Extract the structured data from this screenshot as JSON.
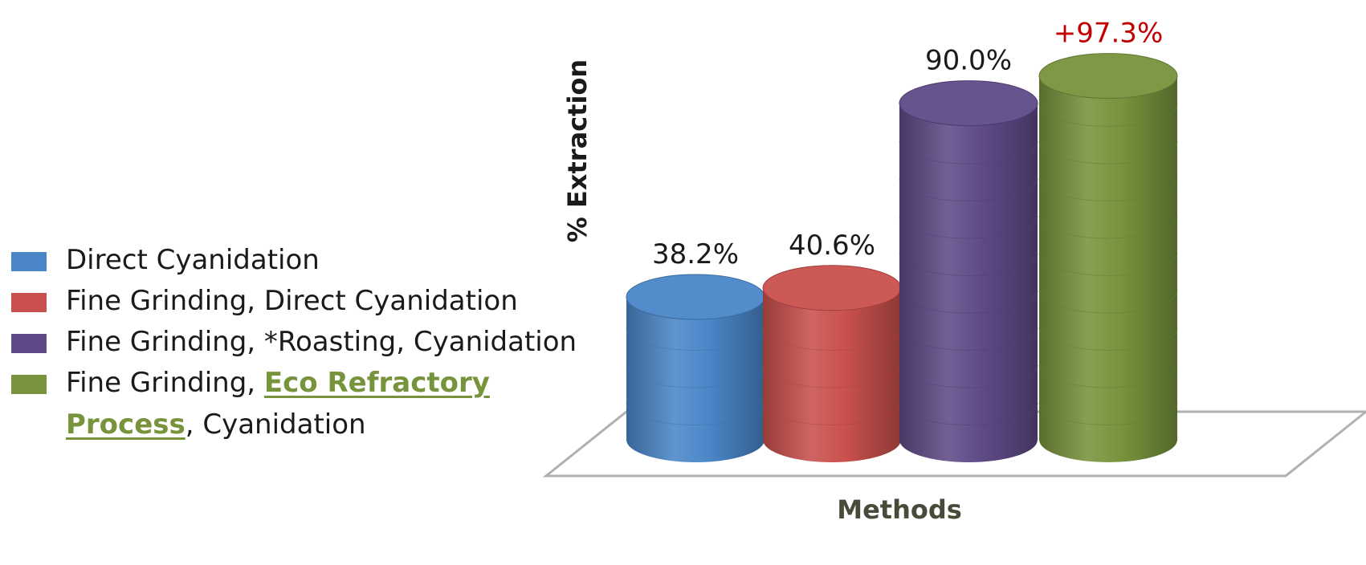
{
  "chart_data": {
    "type": "bar",
    "categories": [
      "Direct Cyanidation",
      "Fine Grinding, Direct Cyanidation",
      "Fine Grinding, *Roasting, Cyanidation",
      "Fine Grinding, Eco Refractory Process, Cyanidation"
    ],
    "values": [
      38.2,
      40.6,
      90.0,
      97.3
    ],
    "data_labels": [
      "38.2%",
      "40.6%",
      "90.0%",
      "+97.3%"
    ],
    "ylabel": "% Extraction",
    "xlabel": "Methods",
    "ylim": [
      0,
      100
    ],
    "bar_style": "3d-cylinder",
    "legend_placement": "left"
  },
  "legend": {
    "items": [
      {
        "label": "Direct Cyanidation"
      },
      {
        "label": "Fine Grinding, Direct Cyanidation"
      },
      {
        "label": "Fine Grinding, *Roasting, Cyanidation"
      },
      {
        "label_prefix": "Fine Grinding, ",
        "label_highlight": "Eco Refractory Process",
        "label_suffix": ", Cyanidation"
      }
    ]
  },
  "colors": {
    "series": [
      "#4a86c8",
      "#c9504d",
      "#5f4a87",
      "#77933c"
    ],
    "highlight_label": "#c00000",
    "axis_title": "#4a4a3a",
    "floor": "#b0b0b0"
  }
}
